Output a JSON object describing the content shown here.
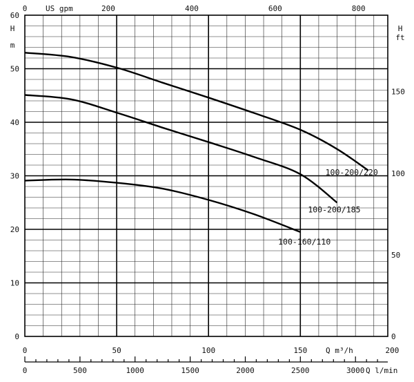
{
  "chart_data": {
    "type": "line",
    "title": "",
    "axes": {
      "left": {
        "label_top": "H",
        "label_bottom": "m",
        "range": [
          0,
          60
        ],
        "ticks": [
          "0",
          "10",
          "20",
          "30",
          "40",
          "50",
          "60"
        ]
      },
      "right": {
        "label_top": "H",
        "label_bottom": "ft",
        "range": [
          0,
          196.85
        ],
        "ticks": [
          "0",
          "50",
          "100",
          "150"
        ]
      },
      "top": {
        "label": "US gpm",
        "range": [
          0,
          869.9
        ],
        "ticks": [
          "0",
          "200",
          "400",
          "600",
          "800"
        ]
      },
      "bottom": {
        "label": "Q m³/h",
        "range": [
          0,
          197.6
        ],
        "ticks": [
          "0",
          "50",
          "100",
          "150",
          "200"
        ]
      },
      "bottom2": {
        "label": "Q l/min",
        "range": [
          0,
          3293
        ],
        "ticks": [
          "0",
          "500",
          "1000",
          "1500",
          "2000",
          "2500",
          "3000"
        ]
      }
    },
    "grid": true,
    "series": [
      {
        "name": "100-200/220",
        "x": [
          0,
          25,
          50,
          75,
          100,
          125,
          150,
          170,
          187
        ],
        "y": [
          53.0,
          52.2,
          50.2,
          47.4,
          44.6,
          41.7,
          38.6,
          35.0,
          31.0
        ]
      },
      {
        "name": "100-200/185",
        "x": [
          0,
          25,
          50,
          75,
          100,
          125,
          150,
          170
        ],
        "y": [
          45.1,
          44.3,
          41.8,
          39.0,
          36.3,
          33.5,
          30.3,
          25.0
        ]
      },
      {
        "name": "100-160/110",
        "x": [
          0,
          25,
          50,
          75,
          100,
          125,
          150
        ],
        "y": [
          29.1,
          29.3,
          28.7,
          27.6,
          25.5,
          22.8,
          19.5
        ]
      }
    ]
  }
}
